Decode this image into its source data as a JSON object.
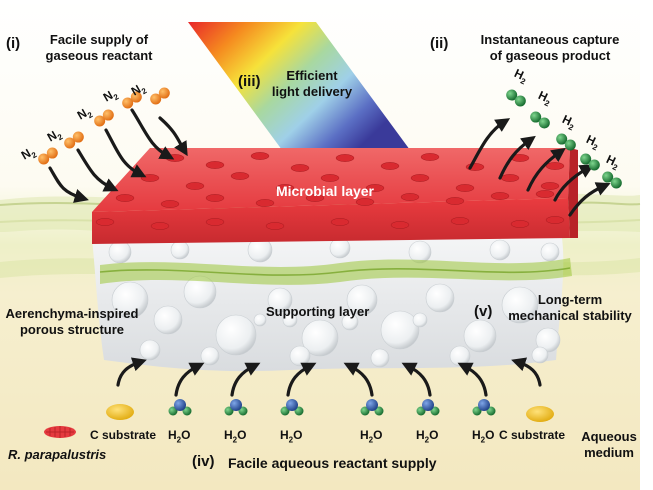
{
  "labels": {
    "i_num": "(i)",
    "i_line1": "Facile supply of",
    "i_line2": "gaseous reactant",
    "ii_num": "(ii)",
    "ii_line1": "Instantaneous capture",
    "ii_line2": "of gaseous product",
    "iii_num": "(iii)",
    "iii_line1": "Efficient",
    "iii_line2": "light delivery",
    "iv_num": "(iv)",
    "iv_text": "Facile aqueous reactant supply",
    "v_num": "(v)",
    "v_line1": "Long-term",
    "v_line2": "mechanical stability",
    "microbial_layer": "Microbial layer",
    "supporting_layer": "Supporting layer",
    "aerenchyma_line1": "Aerenchyma-inspired",
    "aerenchyma_line2": "porous structure",
    "c_substrate_left": "C substrate",
    "c_substrate_right": "C substrate",
    "aqueous_line1": "Aqueous",
    "aqueous_line2": "medium",
    "organism": "R. parapalustris"
  },
  "molecules": {
    "n2_base": "N",
    "n2_sub": "2",
    "h2_base": "H",
    "h2_sub": "2",
    "h2o_pre": "H",
    "h2o_sub": "2",
    "h2o_post": "O"
  },
  "colors": {
    "microbial_layer": "#e8383d",
    "nitrogen_atom": "#e87a1e",
    "hydrogen_atom": "#1f8a3c",
    "oxygen_atom": "#2c5aa8",
    "substrate": "#f2c21c",
    "water_surface": "#c8d98a",
    "background_medium": "#f5efd0"
  }
}
